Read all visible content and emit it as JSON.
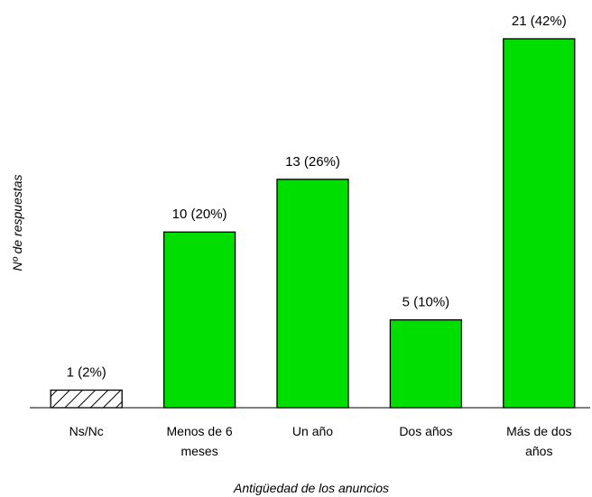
{
  "chart_data": {
    "type": "bar",
    "title": "",
    "xlabel": "Antigüedad de los anuncios",
    "ylabel": "Nº de respuestas",
    "ylim": [
      0,
      21
    ],
    "grid": false,
    "legend": "none",
    "categories": [
      [
        "Ns/Nc"
      ],
      [
        "Menos de 6",
        "meses"
      ],
      [
        "Un año"
      ],
      [
        "Dos años"
      ],
      [
        "Más de dos",
        "años"
      ]
    ],
    "values": [
      1,
      10,
      13,
      5,
      21
    ],
    "data_labels": [
      "1 (2%)",
      "10 (20%)",
      "13 (26%)",
      "5 (10%)",
      "21 (42%)"
    ],
    "bar_styles": [
      "hatched",
      "solid",
      "solid",
      "solid",
      "solid"
    ],
    "colors": {
      "bar_fill": "#00dd00",
      "bar_stroke": "#000000",
      "hatch_fill": "#ffffff",
      "hatch_line": "#000000",
      "axis": "#000000"
    }
  }
}
